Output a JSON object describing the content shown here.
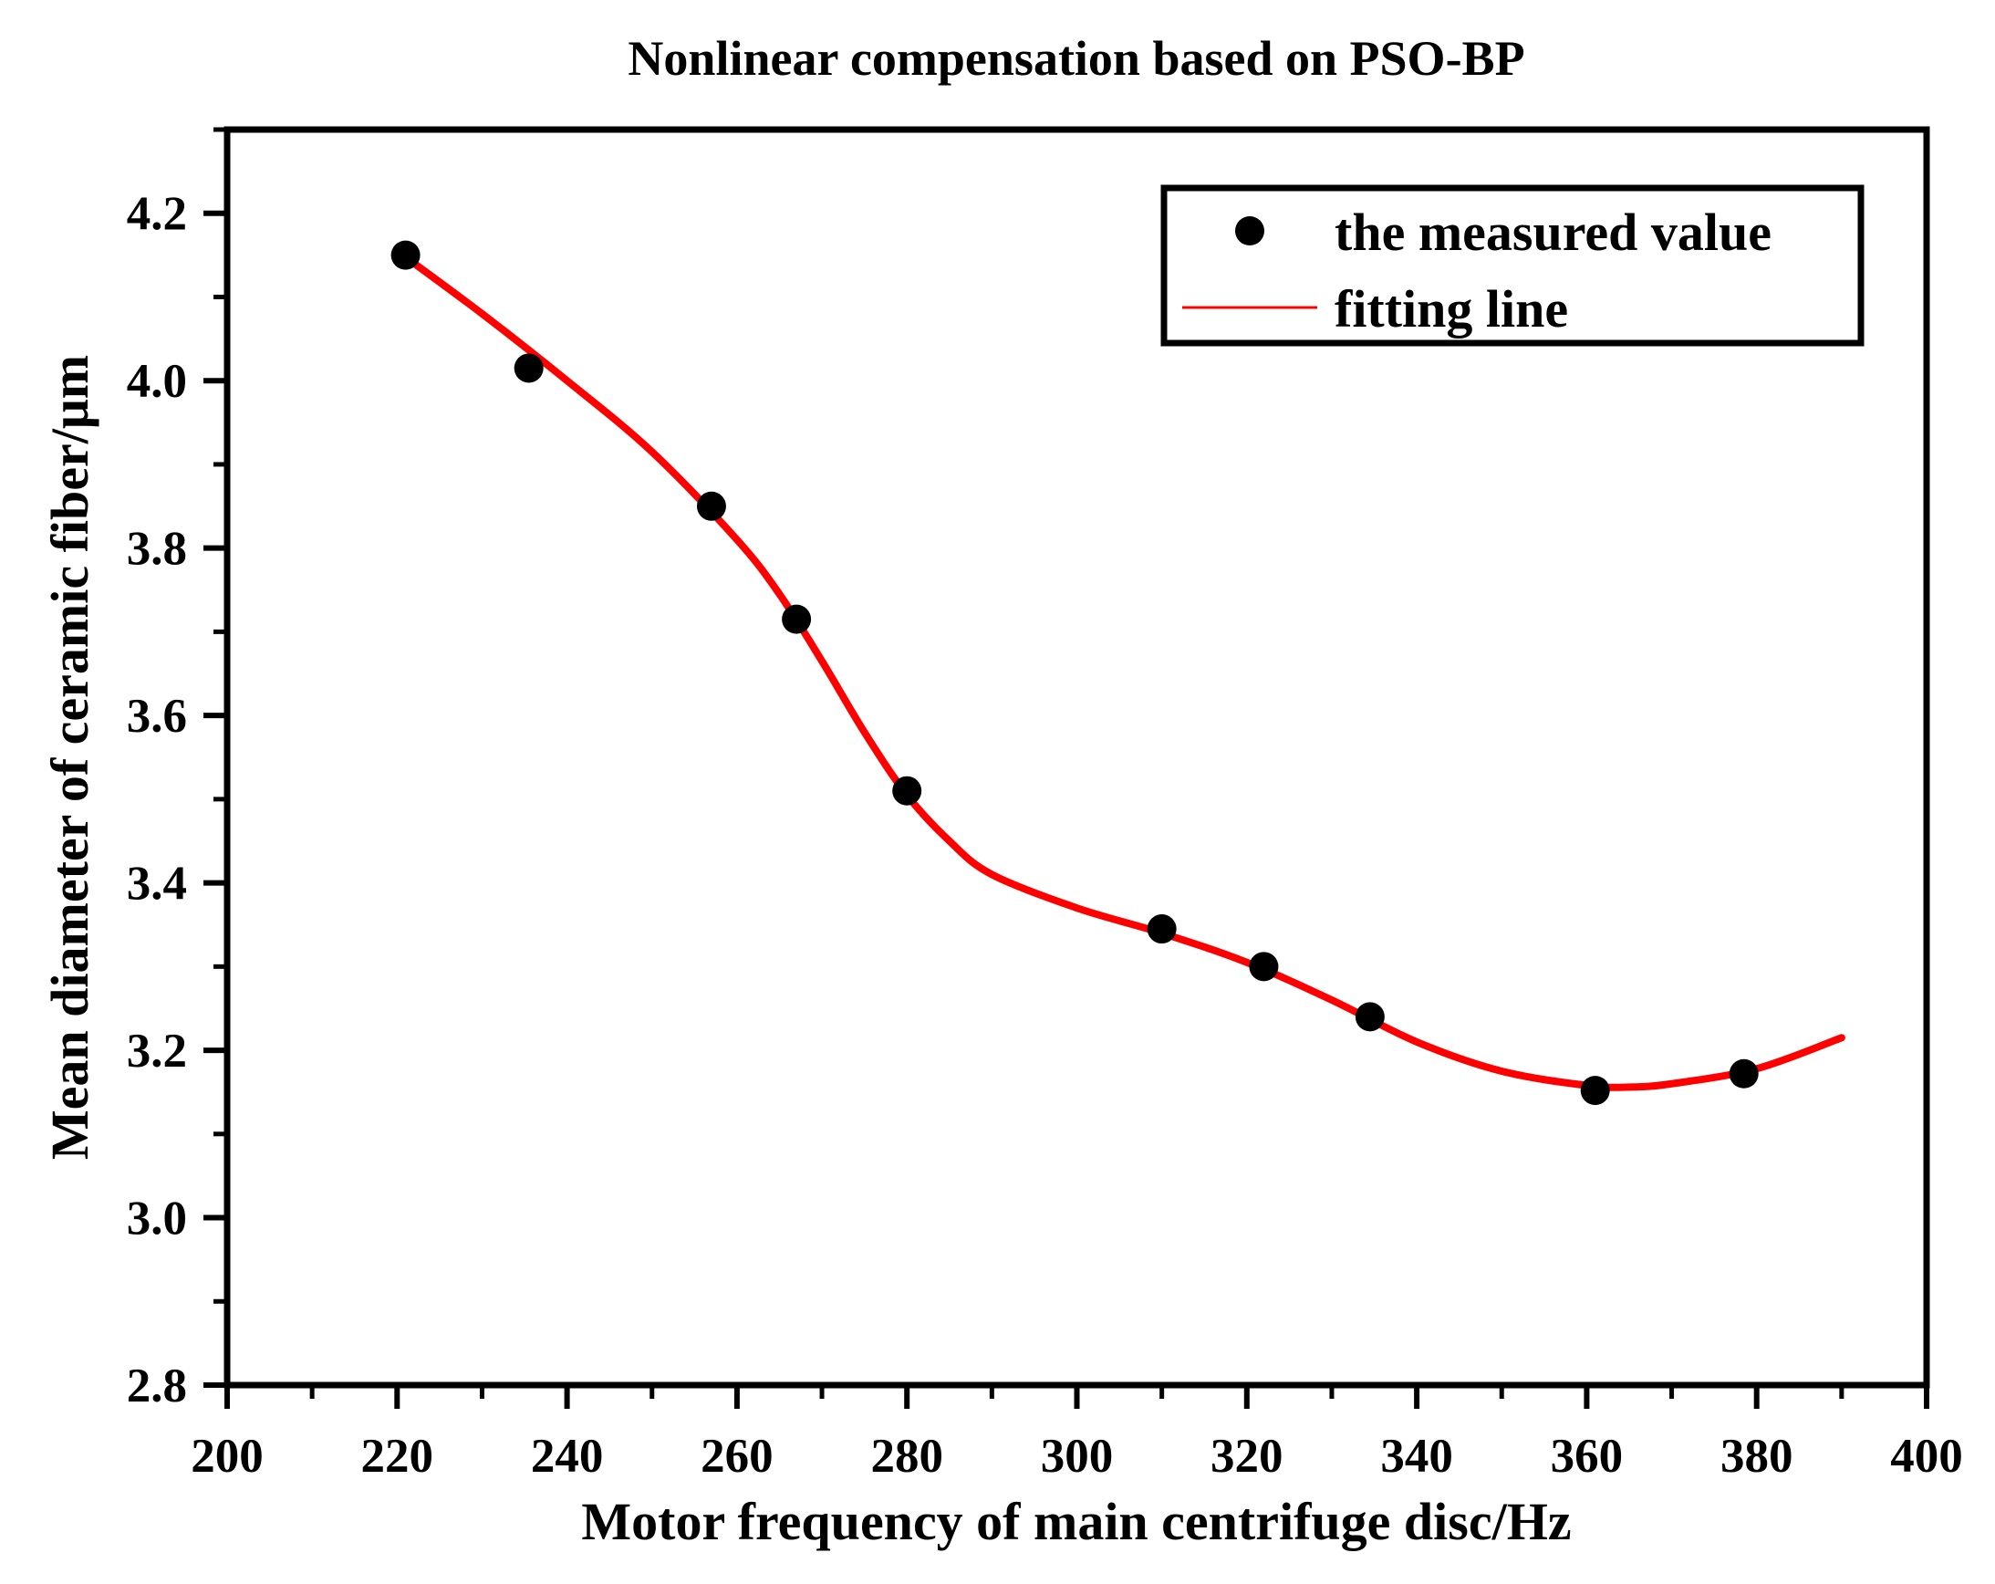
{
  "chart_data": {
    "type": "line",
    "title": "Nonlinear compensation based on PSO-BP",
    "xlabel": "Motor frequency of main centrifuge disc/Hz",
    "ylabel": "Mean diameter of ceramic fiber/μm",
    "xlim": [
      200,
      400
    ],
    "ylim": [
      2.8,
      4.3
    ],
    "xticks": [
      200,
      220,
      240,
      260,
      280,
      300,
      320,
      340,
      360,
      380,
      400
    ],
    "xtick_labels": [
      "200",
      "220",
      "240",
      "260",
      "280",
      "300",
      "320",
      "340",
      "360",
      "380",
      "400"
    ],
    "yticks": [
      2.8,
      3.0,
      3.2,
      3.4,
      3.6,
      3.8,
      4.0,
      4.2
    ],
    "ytick_labels": [
      "2.8",
      "3.0",
      "3.2",
      "3.4",
      "3.6",
      "3.8",
      "4.0",
      "4.2"
    ],
    "x_minor_step": 10,
    "y_minor_step": 0.1,
    "grid": false,
    "legend": {
      "position": "top-right",
      "entries": [
        "the measured value",
        "fitting line"
      ]
    },
    "series": [
      {
        "name": "the measured value",
        "kind": "scatter",
        "color": "#000000",
        "x": [
          221,
          235.5,
          257,
          267,
          280,
          310,
          322,
          334.5,
          361,
          378.5
        ],
        "y": [
          4.15,
          4.015,
          3.85,
          3.715,
          3.51,
          3.345,
          3.3,
          3.24,
          3.152,
          3.172
        ]
      },
      {
        "name": "fitting line",
        "kind": "line",
        "color": "#ff0000",
        "x": [
          220,
          230,
          240,
          250,
          260,
          265,
          270,
          275,
          280,
          285,
          290,
          300,
          310,
          320,
          330,
          340,
          350,
          360,
          365,
          370,
          380,
          390
        ],
        "y": [
          4.155,
          4.08,
          4.0,
          3.915,
          3.81,
          3.745,
          3.665,
          3.58,
          3.505,
          3.45,
          3.41,
          3.37,
          3.34,
          3.305,
          3.26,
          3.21,
          3.175,
          3.158,
          3.156,
          3.16,
          3.178,
          3.215
        ]
      }
    ]
  }
}
